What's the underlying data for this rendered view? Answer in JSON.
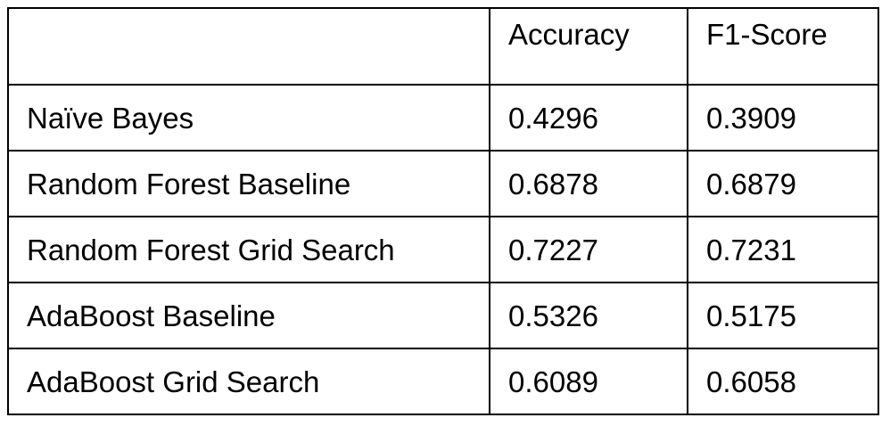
{
  "table": {
    "headers": [
      "",
      "Accuracy",
      "F1-Score"
    ],
    "rows": [
      {
        "model": "Naïve Bayes",
        "accuracy": "0.4296",
        "f1": "0.3909"
      },
      {
        "model": "Random Forest Baseline",
        "accuracy": "0.6878",
        "f1": "0.6879"
      },
      {
        "model": "Random Forest Grid Search",
        "accuracy": "0.7227",
        "f1": "0.7231"
      },
      {
        "model": "AdaBoost Baseline",
        "accuracy": "0.5326",
        "f1": "0.5175"
      },
      {
        "model": "AdaBoost Grid Search",
        "accuracy": "0.6089",
        "f1": "0.6058"
      }
    ]
  }
}
